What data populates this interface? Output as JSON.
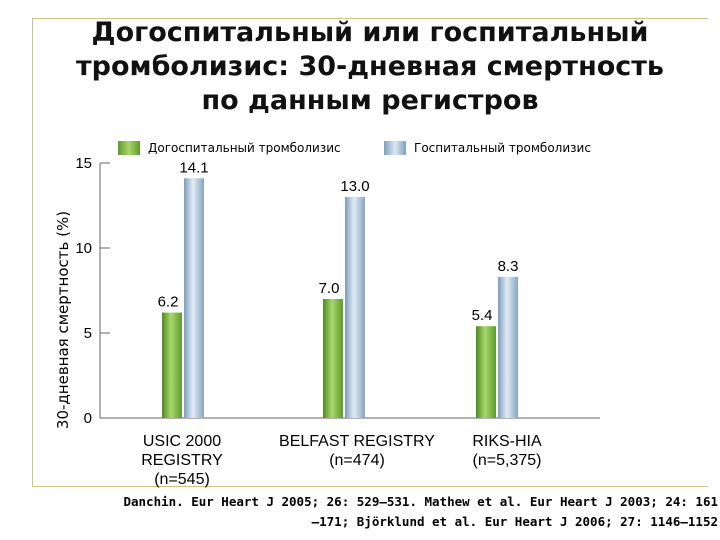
{
  "title": "Догоспитальный или госпитальный\nтромболизис: 30-дневная смертность\nпо данным регистров",
  "citation": "Danchin. Eur Heart J 2005; 26: 529–531. Mathew et al. Eur Heart J 2003; 24: 161\n–171; Björklund et al. Eur Heart J 2006; 27: 1146–1152",
  "chart_data": {
    "type": "bar",
    "categories": [
      "USIC 2000\nREGISTRY\n(n=545)",
      "BELFAST REGISTRY\n(n=474)",
      "RIKS-HIA\n(n=5,375)"
    ],
    "series": [
      {
        "name": "Догоспитальный тромболизис",
        "values": [
          6.2,
          7.0,
          5.4
        ],
        "labels": [
          "6.2",
          "7.0",
          "5.4"
        ],
        "color": "#7ab648"
      },
      {
        "name": "Госпитальный тромболизис",
        "values": [
          14.1,
          13.0,
          8.3
        ],
        "labels": [
          "14.1",
          "13.0",
          "8.3"
        ],
        "color": "#a9c1d9"
      }
    ],
    "ylabel": "30-дневная смертность (%)",
    "xlabel": "",
    "ylim": [
      0,
      15
    ],
    "yticks": [
      "0",
      "5",
      "10",
      "15"
    ],
    "grid": false,
    "legend_position": "top"
  }
}
